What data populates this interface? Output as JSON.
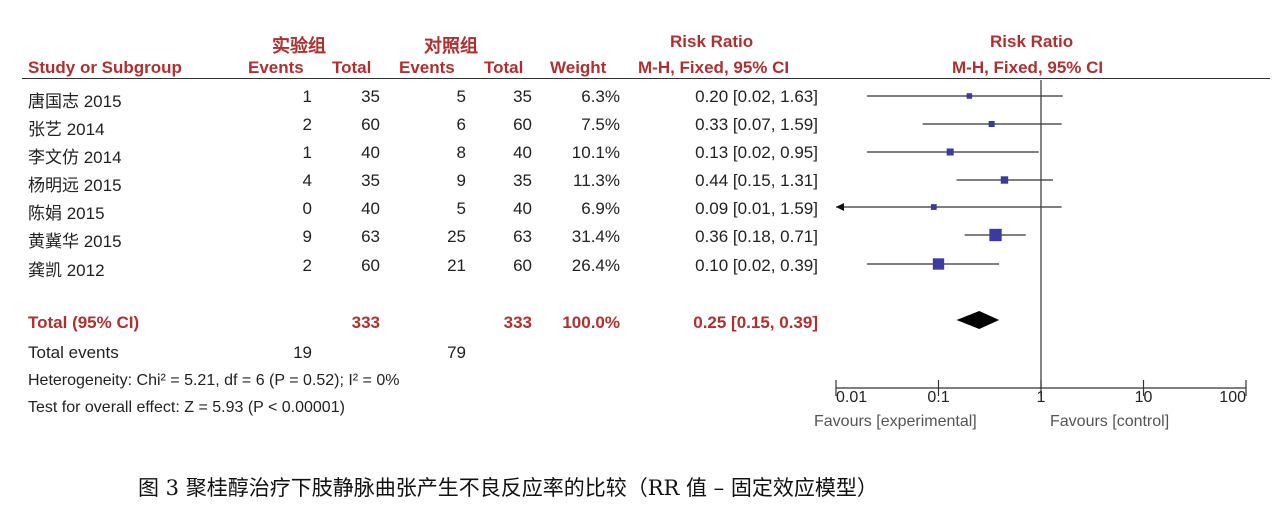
{
  "group_headers": {
    "experimental": "实验组",
    "control": "对照组"
  },
  "headers": {
    "study": "Study or Subgroup",
    "exp_events": "Events",
    "exp_total": "Total",
    "ctl_events": "Events",
    "ctl_total": "Total",
    "weight": "Weight",
    "rr_title": "Risk Ratio",
    "rr_method": "M-H, Fixed, 95% CI",
    "plot_title": "Risk Ratio",
    "plot_method": "M-H, Fixed, 95% CI"
  },
  "studies": [
    {
      "name": "唐国志  2015",
      "e_events": "1",
      "e_total": "35",
      "c_events": "5",
      "c_total": "35",
      "weight": "6.3%",
      "ci": "0.20 [0.02, 1.63]"
    },
    {
      "name": "张艺  2014",
      "e_events": "2",
      "e_total": "60",
      "c_events": "6",
      "c_total": "60",
      "weight": "7.5%",
      "ci": "0.33 [0.07, 1.59]"
    },
    {
      "name": "李文仿  2014",
      "e_events": "1",
      "e_total": "40",
      "c_events": "8",
      "c_total": "40",
      "weight": "10.1%",
      "ci": "0.13 [0.02, 0.95]"
    },
    {
      "name": "杨明远  2015",
      "e_events": "4",
      "e_total": "35",
      "c_events": "9",
      "c_total": "35",
      "weight": "11.3%",
      "ci": "0.44 [0.15, 1.31]"
    },
    {
      "name": "陈娟  2015",
      "e_events": "0",
      "e_total": "40",
      "c_events": "5",
      "c_total": "40",
      "weight": "6.9%",
      "ci": "0.09 [0.01, 1.59]"
    },
    {
      "name": "黄冀华  2015",
      "e_events": "9",
      "e_total": "63",
      "c_events": "25",
      "c_total": "63",
      "weight": "31.4%",
      "ci": "0.36 [0.18, 0.71]"
    },
    {
      "name": "龚凯  2012",
      "e_events": "2",
      "e_total": "60",
      "c_events": "21",
      "c_total": "60",
      "weight": "26.4%",
      "ci": "0.10 [0.02, 0.39]"
    }
  ],
  "total": {
    "label": "Total (95% CI)",
    "e_total": "333",
    "c_total": "333",
    "weight": "100.0%",
    "ci": "0.25 [0.15, 0.39]"
  },
  "total_events": {
    "label": "Total events",
    "e_events": "19",
    "c_events": "79"
  },
  "heterogeneity": "Heterogeneity: Chi² = 5.21, df = 6 (P = 0.52); I² = 0%",
  "overall_effect": "Test for overall effect: Z = 5.93 (P < 0.00001)",
  "axis": {
    "ticks": [
      "0.01",
      "0.1",
      "1",
      "10",
      "100"
    ],
    "favours_left": "Favours [experimental]",
    "favours_right": "Favours [control]"
  },
  "caption": "图 3   聚桂醇治疗下肢静脉曲张产生不良反应率的比较（RR 值 – 固定效应模型）",
  "colors": {
    "header": "#b03030",
    "marker": "#3a3aa0",
    "line": "#333333",
    "diamond": "#000000"
  },
  "chart_data": {
    "type": "forest",
    "x_scale": "log",
    "xlim": [
      0.01,
      100
    ],
    "xticks": [
      0.01,
      0.1,
      1,
      10,
      100
    ],
    "reference_line": 1,
    "studies": [
      {
        "name": "唐国志  2015",
        "rr": 0.2,
        "lo": 0.02,
        "hi": 1.63,
        "weight": 6.3
      },
      {
        "name": "张艺  2014",
        "rr": 0.33,
        "lo": 0.07,
        "hi": 1.59,
        "weight": 7.5
      },
      {
        "name": "李文仿  2014",
        "rr": 0.13,
        "lo": 0.02,
        "hi": 0.95,
        "weight": 10.1
      },
      {
        "name": "杨明远  2015",
        "rr": 0.44,
        "lo": 0.15,
        "hi": 1.31,
        "weight": 11.3
      },
      {
        "name": "陈娟  2015",
        "rr": 0.09,
        "lo": 0.01,
        "hi": 1.59,
        "weight": 6.9
      },
      {
        "name": "黄冀华  2015",
        "rr": 0.36,
        "lo": 0.18,
        "hi": 0.71,
        "weight": 31.4
      },
      {
        "name": "龚凯  2012",
        "rr": 0.1,
        "lo": 0.02,
        "hi": 0.39,
        "weight": 26.4
      }
    ],
    "pooled": {
      "rr": 0.25,
      "lo": 0.15,
      "hi": 0.39
    }
  }
}
